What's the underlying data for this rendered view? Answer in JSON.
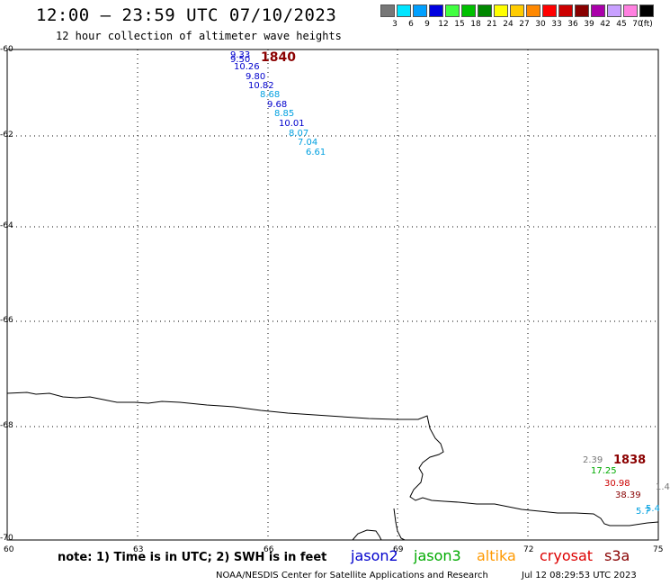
{
  "header": {
    "title": "12:00 – 23:59 UTC 07/10/2023",
    "subtitle": "12 hour collection of altimeter wave heights"
  },
  "legend": {
    "unit": "(ft)",
    "bins": [
      {
        "label": "3",
        "color": "#777777"
      },
      {
        "label": "6",
        "color": "#00e5ff"
      },
      {
        "label": "9",
        "color": "#00a0ff"
      },
      {
        "label": "12",
        "color": "#0000e0"
      },
      {
        "label": "15",
        "color": "#40ff40"
      },
      {
        "label": "18",
        "color": "#00c000"
      },
      {
        "label": "21",
        "color": "#008800"
      },
      {
        "label": "24",
        "color": "#ffff00"
      },
      {
        "label": "27",
        "color": "#ffcc00"
      },
      {
        "label": "30",
        "color": "#ff8800"
      },
      {
        "label": "33",
        "color": "#ff0000"
      },
      {
        "label": "36",
        "color": "#cc0000"
      },
      {
        "label": "39",
        "color": "#880000"
      },
      {
        "label": "42",
        "color": "#aa00aa"
      },
      {
        "label": "45",
        "color": "#c8a0ff"
      },
      {
        "label": "70",
        "color": "#ff80e0"
      },
      {
        "label": "",
        "color": "#000000"
      }
    ]
  },
  "map": {
    "lat_labels": [
      "-60",
      "-62",
      "-64",
      "-66",
      "-68",
      "-70"
    ],
    "lon_labels": [
      "60",
      "63",
      "66",
      "69",
      "72",
      "75"
    ],
    "track_west": [
      {
        "text": "9.33",
        "color": "#0000cc"
      },
      {
        "text": "9.50",
        "color": "#0000cc"
      },
      {
        "text": "1840",
        "color": "#8b0000"
      },
      {
        "text": "10.26",
        "color": "#0000cc"
      },
      {
        "text": "9.80",
        "color": "#0000cc"
      },
      {
        "text": "10.82",
        "color": "#0000cc"
      },
      {
        "text": "8.68",
        "color": "#00a0e0"
      },
      {
        "text": "9.68",
        "color": "#0000cc"
      },
      {
        "text": "8.85",
        "color": "#00a0e0"
      },
      {
        "text": "10.01",
        "color": "#0000cc"
      },
      {
        "text": "8.07",
        "color": "#00a0e0"
      },
      {
        "text": "7.04",
        "color": "#00a0e0"
      },
      {
        "text": "6.61",
        "color": "#00a0e0"
      }
    ],
    "track_east": [
      {
        "text": "2.39",
        "color": "#777777"
      },
      {
        "text": "1838",
        "color": "#8b0000"
      },
      {
        "text": "17.25",
        "color": "#00aa00"
      },
      {
        "text": "30.98",
        "color": "#cc0000"
      },
      {
        "text": "38.39",
        "color": "#880000"
      },
      {
        "text": "1.4",
        "color": "#777777"
      },
      {
        "text": "5.7",
        "color": "#00a0e0"
      },
      {
        "text": "5.4",
        "color": "#00a0e0"
      }
    ]
  },
  "footer": {
    "note": "note: 1) Time is in UTC; 2) SWH is in feet",
    "satellites": [
      {
        "name": "jason2",
        "color": "#0000cc"
      },
      {
        "name": "jason3",
        "color": "#00aa00"
      },
      {
        "name": "altika",
        "color": "#ff9900"
      },
      {
        "name": "cryosat",
        "color": "#dd0000"
      },
      {
        "name": "s3a",
        "color": "#880000"
      }
    ],
    "credit": "NOAA/NESDIS Center for Satellite Applications and Research",
    "timestamp": "Jul 12 08:29:53 UTC 2023"
  }
}
